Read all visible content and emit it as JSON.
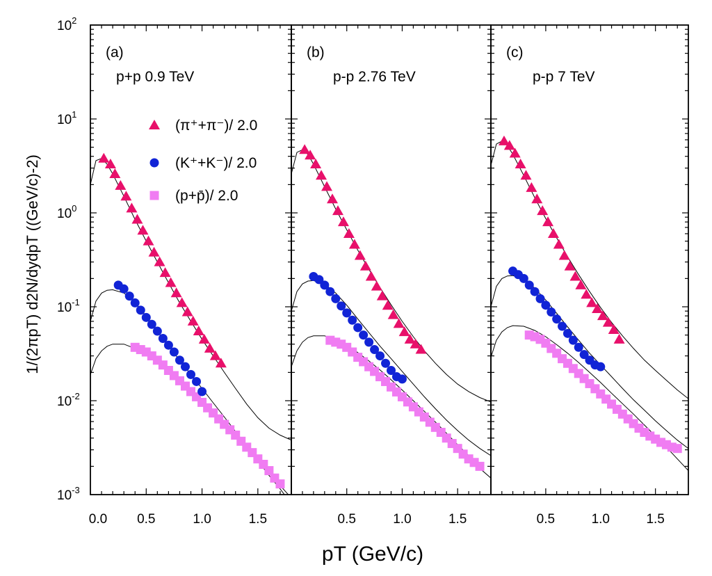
{
  "chart_data": {
    "type": "scatter",
    "y_scale": "log",
    "ylim": [
      0.001,
      100
    ],
    "xlim": [
      0,
      1.8
    ],
    "ylabel": "1/(2πpT) d2N/dydpT ((GeV/c)-2)",
    "xlabel": "pT (GeV/c)",
    "x_tick_labels": [
      [
        "0.0",
        "0.5",
        "1.0",
        "1.5"
      ],
      [
        "0.5",
        "1.0",
        "1.5"
      ],
      [
        "0.5",
        "1.0",
        "1.5"
      ]
    ],
    "x_tick_values": [
      [
        0,
        0.5,
        1.0,
        1.5
      ],
      [
        0.5,
        1.0,
        1.5
      ],
      [
        0.5,
        1.0,
        1.5
      ]
    ],
    "y_ticks": [
      {
        "value": 100,
        "base": "10",
        "exp": "2"
      },
      {
        "value": 10,
        "base": "10",
        "exp": "1"
      },
      {
        "value": 1,
        "base": "10",
        "exp": "0"
      },
      {
        "value": 0.1,
        "base": "10",
        "exp": "-1"
      },
      {
        "value": 0.01,
        "base": "10",
        "exp": "-2"
      },
      {
        "value": 0.001,
        "base": "10",
        "exp": "-3"
      }
    ],
    "legend": [
      {
        "series": "pions",
        "label": "(π⁺+π⁻)/ 2.0",
        "marker": "triangle"
      },
      {
        "series": "kaons",
        "label": "(K⁺+K⁻)/ 2.0",
        "marker": "circle"
      },
      {
        "series": "protons",
        "label": "(p+p̄)/ 2.0",
        "marker": "square"
      }
    ],
    "colors": {
      "pions": "#e8106a",
      "kaons": "#1124d6",
      "protons": "#f07cf2",
      "fit": "#000000"
    },
    "panels": [
      {
        "tag": "(a)",
        "title": "p+p   0.9 TeV",
        "series": {
          "pions": {
            "x": [
              0.12,
              0.18,
              0.22,
              0.27,
              0.32,
              0.37,
              0.42,
              0.47,
              0.52,
              0.57,
              0.62,
              0.67,
              0.72,
              0.77,
              0.82,
              0.87,
              0.92,
              0.97,
              1.02,
              1.07,
              1.12,
              1.17
            ],
            "y": [
              3.8,
              3.3,
              2.6,
              1.95,
              1.5,
              1.12,
              0.85,
              0.65,
              0.5,
              0.38,
              0.3,
              0.23,
              0.18,
              0.14,
              0.11,
              0.088,
              0.07,
              0.055,
              0.045,
              0.036,
              0.03,
              0.025
            ]
          },
          "kaons": {
            "x": [
              0.25,
              0.3,
              0.35,
              0.4,
              0.45,
              0.5,
              0.55,
              0.6,
              0.65,
              0.7,
              0.75,
              0.8,
              0.85,
              0.9,
              0.95,
              1.0
            ],
            "y": [
              0.17,
              0.155,
              0.13,
              0.11,
              0.092,
              0.077,
              0.065,
              0.055,
              0.046,
              0.039,
              0.033,
              0.027,
              0.023,
              0.019,
              0.016,
              0.0125
            ]
          },
          "protons": {
            "x": [
              0.4,
              0.45,
              0.5,
              0.55,
              0.6,
              0.65,
              0.7,
              0.75,
              0.8,
              0.85,
              0.9,
              0.95,
              1.0,
              1.05,
              1.1,
              1.15,
              1.2,
              1.25,
              1.3,
              1.35,
              1.4,
              1.45,
              1.5,
              1.55,
              1.6,
              1.65,
              1.7
            ],
            "y": [
              0.037,
              0.035,
              0.033,
              0.03,
              0.027,
              0.024,
              0.021,
              0.0185,
              0.0163,
              0.0143,
              0.0125,
              0.011,
              0.0096,
              0.0084,
              0.0074,
              0.0064,
              0.0056,
              0.0049,
              0.0043,
              0.0037,
              0.0032,
              0.0028,
              0.0024,
              0.0021,
              0.0018,
              0.0015,
              0.0013
            ]
          }
        },
        "fits": {
          "pions": {
            "x": [
              0.0,
              0.05,
              0.1,
              0.15,
              0.2,
              0.3,
              0.4,
              0.5,
              0.6,
              0.7,
              0.8,
              0.9,
              1.0,
              1.1,
              1.2,
              1.3,
              1.4,
              1.5,
              1.6,
              1.7,
              1.8
            ],
            "y": [
              2.0,
              3.6,
              3.8,
              3.3,
              2.6,
              1.5,
              0.85,
              0.5,
              0.3,
              0.18,
              0.11,
              0.07,
              0.045,
              0.03,
              0.02,
              0.0135,
              0.0092,
              0.0066,
              0.0051,
              0.0043,
              0.0038
            ]
          },
          "kaons": {
            "x": [
              0.0,
              0.05,
              0.1,
              0.15,
              0.2,
              0.3,
              0.4,
              0.5,
              0.6,
              0.7,
              0.8,
              0.9,
              1.0,
              1.1,
              1.2,
              1.3,
              1.4,
              1.5,
              1.6,
              1.7,
              1.8
            ],
            "y": [
              0.07,
              0.115,
              0.14,
              0.15,
              0.152,
              0.14,
              0.112,
              0.079,
              0.055,
              0.038,
              0.027,
              0.019,
              0.0135,
              0.0095,
              0.0067,
              0.0047,
              0.0033,
              0.0023,
              0.0016,
              0.00115,
              0.0008
            ]
          },
          "protons": {
            "x": [
              0.0,
              0.05,
              0.1,
              0.15,
              0.2,
              0.3,
              0.4,
              0.5,
              0.6,
              0.7,
              0.8,
              0.9,
              1.0,
              1.1,
              1.2,
              1.3,
              1.4,
              1.5,
              1.6,
              1.7,
              1.8
            ],
            "y": [
              0.019,
              0.028,
              0.034,
              0.038,
              0.04,
              0.04,
              0.036,
              0.031,
              0.026,
              0.021,
              0.0165,
              0.0128,
              0.0098,
              0.0074,
              0.0056,
              0.0042,
              0.0031,
              0.0023,
              0.0017,
              0.00125,
              0.00092
            ]
          }
        }
      },
      {
        "tag": "(b)",
        "title": "p-p   2.76 TeV",
        "series": {
          "pions": {
            "x": [
              0.12,
              0.17,
              0.22,
              0.27,
              0.32,
              0.37,
              0.42,
              0.47,
              0.52,
              0.57,
              0.62,
              0.67,
              0.72,
              0.77,
              0.82,
              0.87,
              0.92,
              0.97,
              1.02,
              1.07,
              1.12,
              1.17
            ],
            "y": [
              4.7,
              4.1,
              3.3,
              2.5,
              1.9,
              1.4,
              1.05,
              0.8,
              0.6,
              0.46,
              0.35,
              0.27,
              0.21,
              0.165,
              0.13,
              0.103,
              0.082,
              0.066,
              0.054,
              0.045,
              0.04,
              0.035
            ]
          },
          "kaons": {
            "x": [
              0.2,
              0.25,
              0.3,
              0.35,
              0.4,
              0.45,
              0.5,
              0.55,
              0.6,
              0.65,
              0.7,
              0.75,
              0.8,
              0.85,
              0.9,
              0.95,
              1.0
            ],
            "y": [
              0.21,
              0.195,
              0.17,
              0.145,
              0.122,
              0.102,
              0.086,
              0.072,
              0.06,
              0.05,
              0.042,
              0.035,
              0.03,
              0.025,
              0.021,
              0.018,
              0.017
            ]
          },
          "protons": {
            "x": [
              0.35,
              0.4,
              0.45,
              0.5,
              0.55,
              0.6,
              0.65,
              0.7,
              0.75,
              0.8,
              0.85,
              0.9,
              0.95,
              1.0,
              1.05,
              1.1,
              1.15,
              1.2,
              1.25,
              1.3,
              1.35,
              1.4,
              1.45,
              1.5,
              1.55,
              1.6,
              1.65,
              1.7
            ],
            "y": [
              0.044,
              0.042,
              0.04,
              0.037,
              0.033,
              0.029,
              0.026,
              0.023,
              0.0205,
              0.018,
              0.016,
              0.014,
              0.0124,
              0.011,
              0.0097,
              0.0086,
              0.0076,
              0.0067,
              0.0059,
              0.0052,
              0.0046,
              0.004,
              0.0035,
              0.0031,
              0.0027,
              0.0024,
              0.0022,
              0.002
            ]
          }
        },
        "fits": {
          "pions": {
            "x": [
              0.0,
              0.05,
              0.1,
              0.15,
              0.2,
              0.3,
              0.4,
              0.5,
              0.6,
              0.7,
              0.8,
              0.9,
              1.0,
              1.1,
              1.2,
              1.3,
              1.4,
              1.5,
              1.6,
              1.7,
              1.8
            ],
            "y": [
              2.6,
              4.4,
              4.7,
              4.2,
              3.3,
              1.9,
              1.1,
              0.66,
              0.4,
              0.25,
              0.16,
              0.105,
              0.07,
              0.048,
              0.034,
              0.025,
              0.019,
              0.015,
              0.0125,
              0.0108,
              0.0097
            ]
          },
          "kaons": {
            "x": [
              0.0,
              0.05,
              0.1,
              0.15,
              0.2,
              0.3,
              0.4,
              0.5,
              0.6,
              0.7,
              0.8,
              0.9,
              1.0,
              1.1,
              1.2,
              1.3,
              1.4,
              1.5,
              1.6,
              1.7,
              1.8
            ],
            "y": [
              0.09,
              0.145,
              0.175,
              0.188,
              0.19,
              0.175,
              0.14,
              0.104,
              0.074,
              0.053,
              0.038,
              0.028,
              0.0205,
              0.015,
              0.011,
              0.0082,
              0.0062,
              0.0048,
              0.0038,
              0.0031,
              0.0026
            ]
          },
          "protons": {
            "x": [
              0.0,
              0.05,
              0.1,
              0.15,
              0.2,
              0.3,
              0.4,
              0.5,
              0.6,
              0.7,
              0.8,
              0.9,
              1.0,
              1.1,
              1.2,
              1.3,
              1.4,
              1.5,
              1.6,
              1.7,
              1.8
            ],
            "y": [
              0.023,
              0.034,
              0.042,
              0.047,
              0.049,
              0.049,
              0.045,
              0.039,
              0.0325,
              0.0265,
              0.0212,
              0.0167,
              0.013,
              0.01,
              0.0077,
              0.0059,
              0.0045,
              0.0034,
              0.0026,
              0.0019,
              0.0015
            ]
          }
        }
      },
      {
        "tag": "(c)",
        "title": "p-p   7 TeV",
        "series": {
          "pions": {
            "x": [
              0.12,
              0.17,
              0.22,
              0.27,
              0.32,
              0.37,
              0.42,
              0.47,
              0.52,
              0.57,
              0.62,
              0.67,
              0.72,
              0.77,
              0.82,
              0.87,
              0.92,
              0.97,
              1.02,
              1.07,
              1.12,
              1.17
            ],
            "y": [
              5.8,
              5.2,
              4.3,
              3.3,
              2.5,
              1.85,
              1.4,
              1.05,
              0.8,
              0.6,
              0.46,
              0.35,
              0.27,
              0.21,
              0.17,
              0.135,
              0.11,
              0.095,
              0.08,
              0.068,
              0.057,
              0.045
            ]
          },
          "kaons": {
            "x": [
              0.2,
              0.25,
              0.3,
              0.35,
              0.4,
              0.45,
              0.5,
              0.55,
              0.6,
              0.65,
              0.7,
              0.75,
              0.8,
              0.85,
              0.9,
              0.95,
              1.0
            ],
            "y": [
              0.24,
              0.22,
              0.2,
              0.17,
              0.145,
              0.122,
              0.104,
              0.088,
              0.074,
              0.062,
              0.052,
              0.044,
              0.037,
              0.031,
              0.027,
              0.024,
              0.023
            ]
          },
          "protons": {
            "x": [
              0.35,
              0.4,
              0.45,
              0.5,
              0.55,
              0.6,
              0.65,
              0.7,
              0.75,
              0.8,
              0.85,
              0.9,
              0.95,
              1.0,
              1.05,
              1.1,
              1.15,
              1.2,
              1.25,
              1.3,
              1.35,
              1.4,
              1.45,
              1.5,
              1.55,
              1.6,
              1.65,
              1.7
            ],
            "y": [
              0.05,
              0.048,
              0.045,
              0.041,
              0.036,
              0.032,
              0.028,
              0.025,
              0.022,
              0.0195,
              0.0172,
              0.0152,
              0.0134,
              0.0118,
              0.0104,
              0.0092,
              0.0081,
              0.0072,
              0.0064,
              0.0057,
              0.0051,
              0.0046,
              0.0042,
              0.0039,
              0.0036,
              0.0034,
              0.0032,
              0.0031
            ]
          }
        },
        "fits": {
          "pions": {
            "x": [
              0.0,
              0.05,
              0.1,
              0.15,
              0.2,
              0.3,
              0.4,
              0.5,
              0.6,
              0.7,
              0.8,
              0.9,
              1.0,
              1.1,
              1.2,
              1.3,
              1.4,
              1.5,
              1.6,
              1.7,
              1.8
            ],
            "y": [
              3.2,
              5.4,
              5.8,
              5.2,
              4.2,
              2.5,
              1.45,
              0.87,
              0.54,
              0.34,
              0.22,
              0.145,
              0.098,
              0.068,
              0.049,
              0.036,
              0.027,
              0.021,
              0.0165,
              0.013,
              0.0105
            ]
          },
          "kaons": {
            "x": [
              0.0,
              0.05,
              0.1,
              0.15,
              0.2,
              0.3,
              0.4,
              0.5,
              0.6,
              0.7,
              0.8,
              0.9,
              1.0,
              1.1,
              1.2,
              1.3,
              1.4,
              1.5,
              1.6,
              1.7,
              1.8
            ],
            "y": [
              0.1,
              0.165,
              0.2,
              0.213,
              0.215,
              0.197,
              0.158,
              0.118,
              0.085,
              0.061,
              0.044,
              0.032,
              0.024,
              0.018,
              0.0135,
              0.0102,
              0.0079,
              0.0061,
              0.0048,
              0.0038,
              0.0031
            ]
          },
          "protons": {
            "x": [
              0.0,
              0.05,
              0.1,
              0.15,
              0.2,
              0.3,
              0.4,
              0.5,
              0.6,
              0.7,
              0.8,
              0.9,
              1.0,
              1.1,
              1.2,
              1.3,
              1.4,
              1.5,
              1.6,
              1.7,
              1.8
            ],
            "y": [
              0.029,
              0.044,
              0.054,
              0.06,
              0.063,
              0.062,
              0.056,
              0.048,
              0.0395,
              0.032,
              0.0255,
              0.02,
              0.0156,
              0.012,
              0.0093,
              0.0072,
              0.0055,
              0.0042,
              0.0032,
              0.0024,
              0.0018
            ]
          }
        }
      }
    ]
  }
}
